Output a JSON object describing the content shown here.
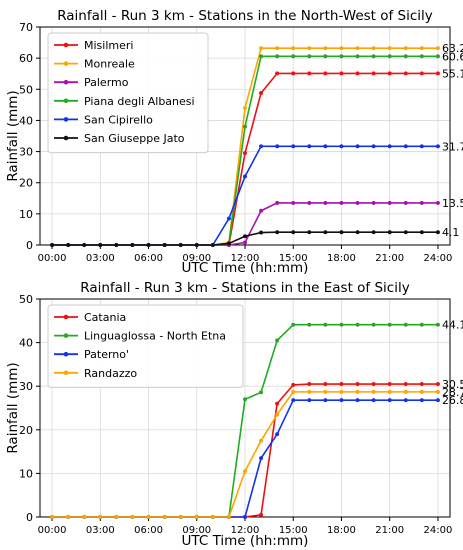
{
  "chart_data": [
    {
      "type": "line",
      "title": "Rainfall - Run 3 km - Stations in the North-West of Sicily",
      "xlabel": "UTC Time (hh:mm)",
      "ylabel": "Rainfall (mm)",
      "xlim": [
        -0.75,
        24.75
      ],
      "ylim": [
        0,
        70
      ],
      "yticks": [
        0,
        10,
        20,
        30,
        40,
        50,
        60,
        70
      ],
      "xticks": [
        0,
        3,
        6,
        9,
        12,
        15,
        18,
        21,
        24
      ],
      "xtick_labels": [
        "00:00",
        "03:00",
        "06:00",
        "09:00",
        "12:00",
        "15:00",
        "18:00",
        "21:00",
        "24:00"
      ],
      "grid": true,
      "legend_position": "top-left",
      "x": [
        0,
        1,
        2,
        3,
        4,
        5,
        6,
        7,
        8,
        9,
        10,
        11,
        12,
        13,
        14,
        15,
        16,
        17,
        18,
        19,
        20,
        21,
        22,
        23,
        24
      ],
      "series": [
        {
          "name": "Misilmeri",
          "color": "#ee1111",
          "end_label": "55.1",
          "values": [
            0,
            0,
            0,
            0,
            0,
            0,
            0,
            0,
            0,
            0,
            0,
            0,
            29.5,
            48.8,
            55.1,
            55.1,
            55.1,
            55.1,
            55.1,
            55.1,
            55.1,
            55.1,
            55.1,
            55.1,
            55.1
          ]
        },
        {
          "name": "Monreale",
          "color": "#ffa500",
          "end_label": "63.2",
          "values": [
            0,
            0,
            0,
            0,
            0,
            0,
            0,
            0,
            0,
            0,
            0,
            0.8,
            44.0,
            63.2,
            63.2,
            63.2,
            63.2,
            63.2,
            63.2,
            63.2,
            63.2,
            63.2,
            63.2,
            63.2,
            63.2
          ]
        },
        {
          "name": "Palermo",
          "color": "#aa11aa",
          "end_label": "13.5",
          "values": [
            0,
            0,
            0,
            0,
            0,
            0,
            0,
            0,
            0,
            0,
            0,
            0,
            0.8,
            11.0,
            13.5,
            13.5,
            13.5,
            13.5,
            13.5,
            13.5,
            13.5,
            13.5,
            13.5,
            13.5,
            13.5
          ]
        },
        {
          "name": "Piana degli Albanesi",
          "color": "#22aa22",
          "end_label": "60.6",
          "values": [
            0,
            0,
            0,
            0,
            0,
            0,
            0,
            0,
            0,
            0,
            0,
            0.5,
            38.0,
            60.6,
            60.6,
            60.6,
            60.6,
            60.6,
            60.6,
            60.6,
            60.6,
            60.6,
            60.6,
            60.6,
            60.6
          ]
        },
        {
          "name": "San Cipirello",
          "color": "#1133ee",
          "end_label": "31.7",
          "values": [
            0,
            0,
            0,
            0,
            0,
            0,
            0,
            0,
            0,
            0,
            0,
            8.5,
            22.0,
            31.7,
            31.7,
            31.7,
            31.7,
            31.7,
            31.7,
            31.7,
            31.7,
            31.7,
            31.7,
            31.7,
            31.7
          ]
        },
        {
          "name": "San Giuseppe Jato",
          "color": "#111111",
          "end_label": "4.1",
          "values": [
            0,
            0,
            0,
            0,
            0,
            0,
            0,
            0,
            0,
            0,
            0,
            0.5,
            2.8,
            4.0,
            4.1,
            4.1,
            4.1,
            4.1,
            4.1,
            4.1,
            4.1,
            4.1,
            4.1,
            4.1,
            4.1
          ]
        }
      ]
    },
    {
      "type": "line",
      "title": "Rainfall - Run 3 km - Stations in the East of Sicily",
      "xlabel": "UTC Time (hh:mm)",
      "ylabel": "Rainfall (mm)",
      "xlim": [
        -0.75,
        24.75
      ],
      "ylim": [
        0,
        50
      ],
      "yticks": [
        0,
        10,
        20,
        30,
        40,
        50
      ],
      "xticks": [
        0,
        3,
        6,
        9,
        12,
        15,
        18,
        21,
        24
      ],
      "xtick_labels": [
        "00:00",
        "03:00",
        "06:00",
        "09:00",
        "12:00",
        "15:00",
        "18:00",
        "21:00",
        "24:00"
      ],
      "grid": true,
      "legend_position": "top-left",
      "x": [
        0,
        1,
        2,
        3,
        4,
        5,
        6,
        7,
        8,
        9,
        10,
        11,
        12,
        13,
        14,
        15,
        16,
        17,
        18,
        19,
        20,
        21,
        22,
        23,
        24
      ],
      "series": [
        {
          "name": "Catania",
          "color": "#ee1111",
          "end_label": "30.5",
          "values": [
            0,
            0,
            0,
            0,
            0,
            0,
            0,
            0,
            0,
            0,
            0,
            0,
            0,
            0.5,
            26.0,
            30.3,
            30.5,
            30.5,
            30.5,
            30.5,
            30.5,
            30.5,
            30.5,
            30.5,
            30.5
          ]
        },
        {
          "name": "Linguaglossa - North Etna",
          "color": "#22aa22",
          "end_label": "44.1",
          "values": [
            0,
            0,
            0,
            0,
            0,
            0,
            0,
            0,
            0,
            0,
            0,
            0,
            27.0,
            28.6,
            40.5,
            44.1,
            44.1,
            44.1,
            44.1,
            44.1,
            44.1,
            44.1,
            44.1,
            44.1,
            44.1
          ]
        },
        {
          "name": "Paterno'",
          "color": "#1133ee",
          "end_label": "26.8",
          "values": [
            0,
            0,
            0,
            0,
            0,
            0,
            0,
            0,
            0,
            0,
            0,
            0,
            0,
            13.5,
            19.0,
            26.8,
            26.8,
            26.8,
            26.8,
            26.8,
            26.8,
            26.8,
            26.8,
            26.8,
            26.8
          ]
        },
        {
          "name": "Randazzo",
          "color": "#ffa500",
          "end_label": "28.7",
          "values": [
            0,
            0,
            0,
            0,
            0,
            0,
            0,
            0,
            0,
            0,
            0,
            0,
            10.5,
            17.5,
            23.5,
            28.7,
            28.7,
            28.7,
            28.7,
            28.7,
            28.7,
            28.7,
            28.7,
            28.7,
            28.7
          ]
        }
      ]
    }
  ]
}
